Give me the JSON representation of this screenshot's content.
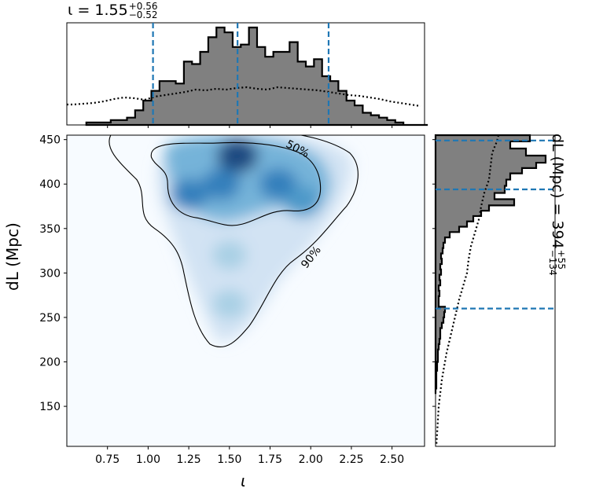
{
  "chart_data": [
    {
      "type": "heatmap",
      "panel": "joint",
      "xlabel": "ι",
      "ylabel": "d_L (Mpc)",
      "xlim": [
        0.5,
        2.7
      ],
      "ylim": [
        105,
        455
      ],
      "xticks": [
        "0.75",
        "1.00",
        "1.25",
        "1.50",
        "1.75",
        "2.00",
        "2.25",
        "2.50"
      ],
      "yticks": [
        "150",
        "200",
        "250",
        "300",
        "350",
        "400",
        "450"
      ],
      "colormap": "Blues",
      "density_blobs": [
        {
          "x": 1.55,
          "y": 432,
          "weight": 1.0
        },
        {
          "x": 1.25,
          "y": 388,
          "weight": 0.75
        },
        {
          "x": 1.8,
          "y": 400,
          "weight": 0.8
        },
        {
          "x": 1.95,
          "y": 380,
          "weight": 0.6
        },
        {
          "x": 1.45,
          "y": 400,
          "weight": 0.7
        },
        {
          "x": 1.5,
          "y": 320,
          "weight": 0.3
        },
        {
          "x": 1.5,
          "y": 265,
          "weight": 0.25
        }
      ],
      "contours": [
        {
          "label": "50%",
          "label_pos": [
            1.92,
            440
          ]
        },
        {
          "label": "90%",
          "label_pos": [
            2.0,
            318
          ]
        }
      ]
    },
    {
      "type": "bar",
      "panel": "marginal-top",
      "xlabel": "ι",
      "title": "ι = 1.55 +0.56 −0.52",
      "median": 1.55,
      "interval": [
        1.03,
        2.11
      ],
      "bin_edges_start": 0.62,
      "bin_width": 0.05,
      "posterior": [
        1,
        1,
        1,
        2,
        2,
        3,
        6,
        10,
        14,
        18,
        18,
        17,
        26,
        25,
        30,
        36,
        40,
        38,
        32,
        33,
        40,
        32,
        28,
        30,
        30,
        34,
        26,
        24,
        27,
        20,
        18,
        14,
        10,
        8,
        5,
        4,
        3,
        2,
        1,
        0,
        0,
        0
      ],
      "prior_dotted": true
    },
    {
      "type": "bar",
      "panel": "marginal-right",
      "title": "d_L (Mpc) = 394 +55 −134",
      "median": 394,
      "interval": [
        260,
        449
      ],
      "orientation": "horizontal",
      "prior_dotted": true
    }
  ],
  "labels": {
    "top_title_main": "ι = 1.55",
    "top_title_sup": "+0.56",
    "top_title_sub": "−0.52",
    "right_title_main": "dL (Mpc) = 394",
    "right_title_sup": "+55",
    "right_title_sub": "−134",
    "ylabel": "dL (Mpc)",
    "xlabel": "ι"
  }
}
